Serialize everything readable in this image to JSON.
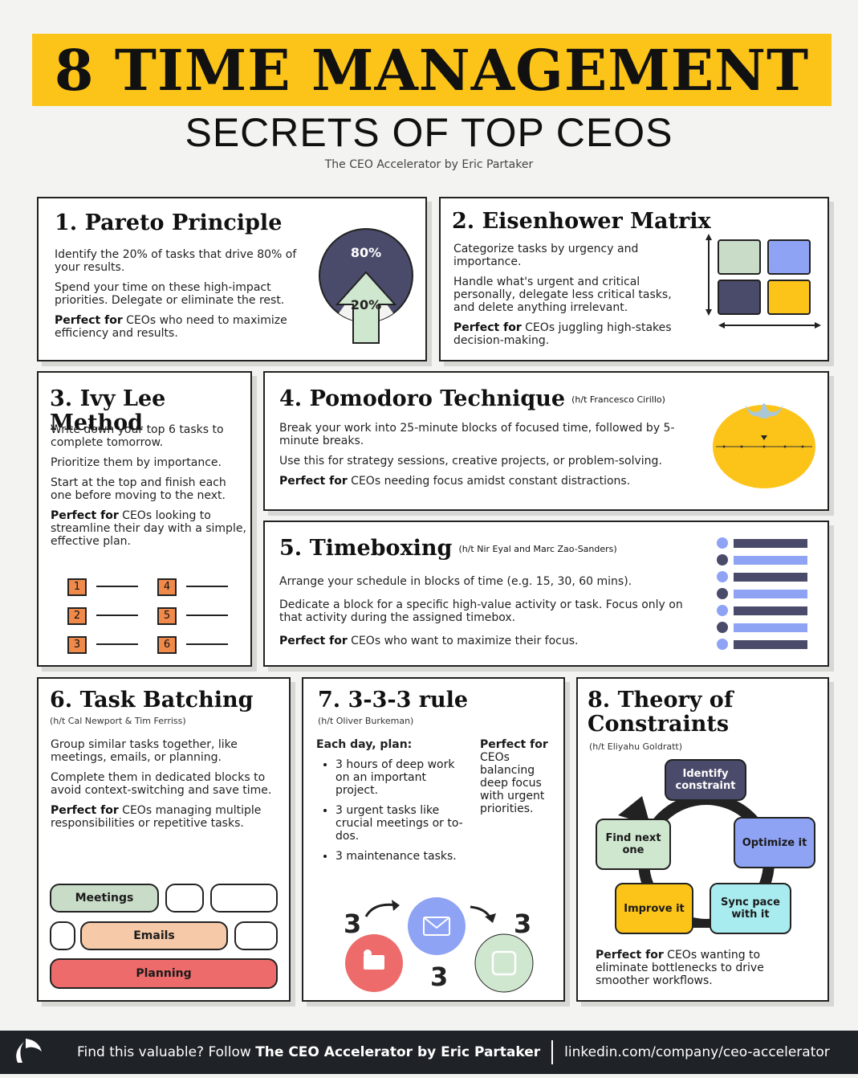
{
  "header": {
    "title": "8 TIME MANAGEMENT",
    "subtitle": "SECRETS OF TOP CEOS",
    "byline": "The CEO Accelerator by Eric Partaker"
  },
  "colors": {
    "yellow": "#fcc419",
    "navy": "#4a4a6a",
    "sage": "#c9dcc8",
    "periwinkle": "#8fa3f5",
    "orange": "#f08a4b",
    "peach": "#f6c9a8",
    "coral": "#ee6b6b",
    "green_light": "#cfe6cf"
  },
  "cards": {
    "pareto": {
      "title": "1. Pareto Principle",
      "p1": "Identify the 20% of tasks that drive 80% of your results.",
      "p2": "Spend your time on these high-impact priorities. Delegate or eliminate the rest.",
      "perfect_label": "Perfect for",
      "perfect_text": " CEOs who need to maximize efficiency and results.",
      "pie_top": "80%",
      "pie_bottom": "20%"
    },
    "eisenhower": {
      "title": "2. Eisenhower Matrix",
      "p1": "Categorize tasks by urgency and importance.",
      "p2": "Handle what's urgent and critical personally, delegate less critical tasks, and delete anything irrelevant.",
      "perfect_label": "Perfect for",
      "perfect_text": " CEOs juggling high-stakes decision-making."
    },
    "ivy": {
      "title": "3. Ivy Lee Method",
      "p1": "Write down your top 6 tasks to complete tomorrow.",
      "p2": "Prioritize them by importance.",
      "p3": "Start at the top and finish each one before moving to the next.",
      "perfect_label": "Perfect for",
      "perfect_text": " CEOs looking to streamline their day with a simple, effective plan.",
      "numbers": [
        "1",
        "2",
        "3",
        "4",
        "5",
        "6"
      ]
    },
    "pomodoro": {
      "title": "4. Pomodoro Technique",
      "credit": "(h/t Francesco Cirillo)",
      "p1": "Break your work into 25-minute blocks of focused time, followed by 5-minute breaks.",
      "p2": "Use this for strategy sessions, creative projects, or problem-solving.",
      "perfect_label": "Perfect for",
      "perfect_text": " CEOs needing focus amidst constant distractions."
    },
    "timeboxing": {
      "title": "5. Timeboxing",
      "credit": "(h/t Nir Eyal and Marc Zao-Sanders)",
      "p1": "Arrange your schedule in blocks of time (e.g. 15, 30, 60 mins).",
      "p2": "Dedicate a block for a specific high-value activity or task. Focus only on that activity during the assigned timebox.",
      "perfect_label": "Perfect for",
      "perfect_text": " CEOs who want to maximize their focus."
    },
    "batching": {
      "title": "6. Task Batching",
      "credit": "(h/t Cal Newport & Tim Ferriss)",
      "p1": "Group similar tasks together, like meetings, emails, or planning.",
      "p2": "Complete them in dedicated blocks to avoid context-switching and save time.",
      "perfect_label": "Perfect for",
      "perfect_text": " CEOs managing multiple responsibilities or repetitive tasks.",
      "chip_meetings": "Meetings",
      "chip_emails": "Emails",
      "chip_planning": "Planning"
    },
    "rule333": {
      "title": "7. 3-3-3 rule",
      "credit": "(h/t Oliver Burkeman)",
      "plan_label": "Each day, plan:",
      "items": [
        "3 hours of deep work on an important project.",
        "3 urgent tasks like crucial meetings or to-dos.",
        "3 maintenance tasks."
      ],
      "perfect_label": "Perfect for",
      "perfect_text": "CEOs balancing deep focus with urgent priorities.",
      "n1": "3",
      "n2": "3",
      "n3": "3"
    },
    "constraints": {
      "title_line1": "8. Theory of",
      "title_line2": "Constraints",
      "credit": "(h/t Eliyahu Goldratt)",
      "node_identify": "Identify constraint",
      "node_optimize": "Optimize it",
      "node_sync": "Sync pace with it",
      "node_improve": "Improve it",
      "node_find": "Find next one",
      "perfect_label": "Perfect for",
      "perfect_text": " CEOs wanting to eliminate bottlenecks to drive smoother workflows."
    }
  },
  "footer": {
    "lead": "Find this valuable? Follow ",
    "brand": "The CEO Accelerator by Eric Partaker",
    "link": "linkedin.com/company/ceo-accelerator"
  }
}
